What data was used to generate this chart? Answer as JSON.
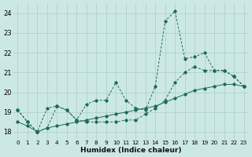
{
  "xlabel": "Humidex (Indice chaleur)",
  "bg_color": "#cce8e5",
  "grid_color": "#aaccca",
  "line_color": "#1a6b5a",
  "xlim": [
    -0.5,
    23.5
  ],
  "ylim": [
    17.6,
    24.5
  ],
  "yticks": [
    18,
    19,
    20,
    21,
    22,
    23,
    24
  ],
  "xticks": [
    0,
    1,
    2,
    3,
    4,
    5,
    6,
    7,
    8,
    9,
    10,
    11,
    12,
    13,
    14,
    15,
    16,
    17,
    18,
    19,
    20,
    21,
    22,
    23
  ],
  "xtick_labels": [
    "0",
    "1",
    "2",
    "3",
    "4",
    "5",
    "6",
    "7",
    "8",
    "9",
    "10",
    "11",
    "12",
    "13",
    "14",
    "15",
    "16",
    "17",
    "18",
    "19",
    "20",
    "21",
    "22",
    "23"
  ],
  "series1_x": [
    0,
    1,
    2,
    3,
    4,
    5,
    6,
    7,
    8,
    9,
    10,
    11,
    12,
    13,
    14,
    15,
    16,
    17,
    18,
    19,
    20,
    21,
    22,
    23
  ],
  "series1_y": [
    19.1,
    18.5,
    18.0,
    19.2,
    19.3,
    19.1,
    18.6,
    19.4,
    19.6,
    19.6,
    20.5,
    19.6,
    19.2,
    19.1,
    20.3,
    23.6,
    24.1,
    21.7,
    21.8,
    22.0,
    21.1,
    21.1,
    20.8,
    20.3
  ],
  "series2_x": [
    0,
    1,
    2,
    3,
    4,
    5,
    6,
    7,
    8,
    9,
    10,
    11,
    12,
    13,
    14,
    15,
    16,
    17,
    18,
    19,
    20,
    21,
    22,
    23
  ],
  "series2_y": [
    19.1,
    18.5,
    18.0,
    18.2,
    19.3,
    19.1,
    18.6,
    18.5,
    18.5,
    18.5,
    18.5,
    18.6,
    18.6,
    18.9,
    19.2,
    19.6,
    20.5,
    21.0,
    21.3,
    21.1,
    21.1,
    21.1,
    20.8,
    20.3
  ],
  "series3_x": [
    0,
    1,
    2,
    3,
    4,
    5,
    6,
    7,
    8,
    9,
    10,
    11,
    12,
    13,
    14,
    15,
    16,
    17,
    18,
    19,
    20,
    21,
    22,
    23
  ],
  "series3_y": [
    18.5,
    18.3,
    18.0,
    18.2,
    18.3,
    18.4,
    18.5,
    18.6,
    18.7,
    18.8,
    18.9,
    19.0,
    19.1,
    19.2,
    19.3,
    19.5,
    19.7,
    19.9,
    20.1,
    20.2,
    20.3,
    20.4,
    20.4,
    20.3
  ]
}
